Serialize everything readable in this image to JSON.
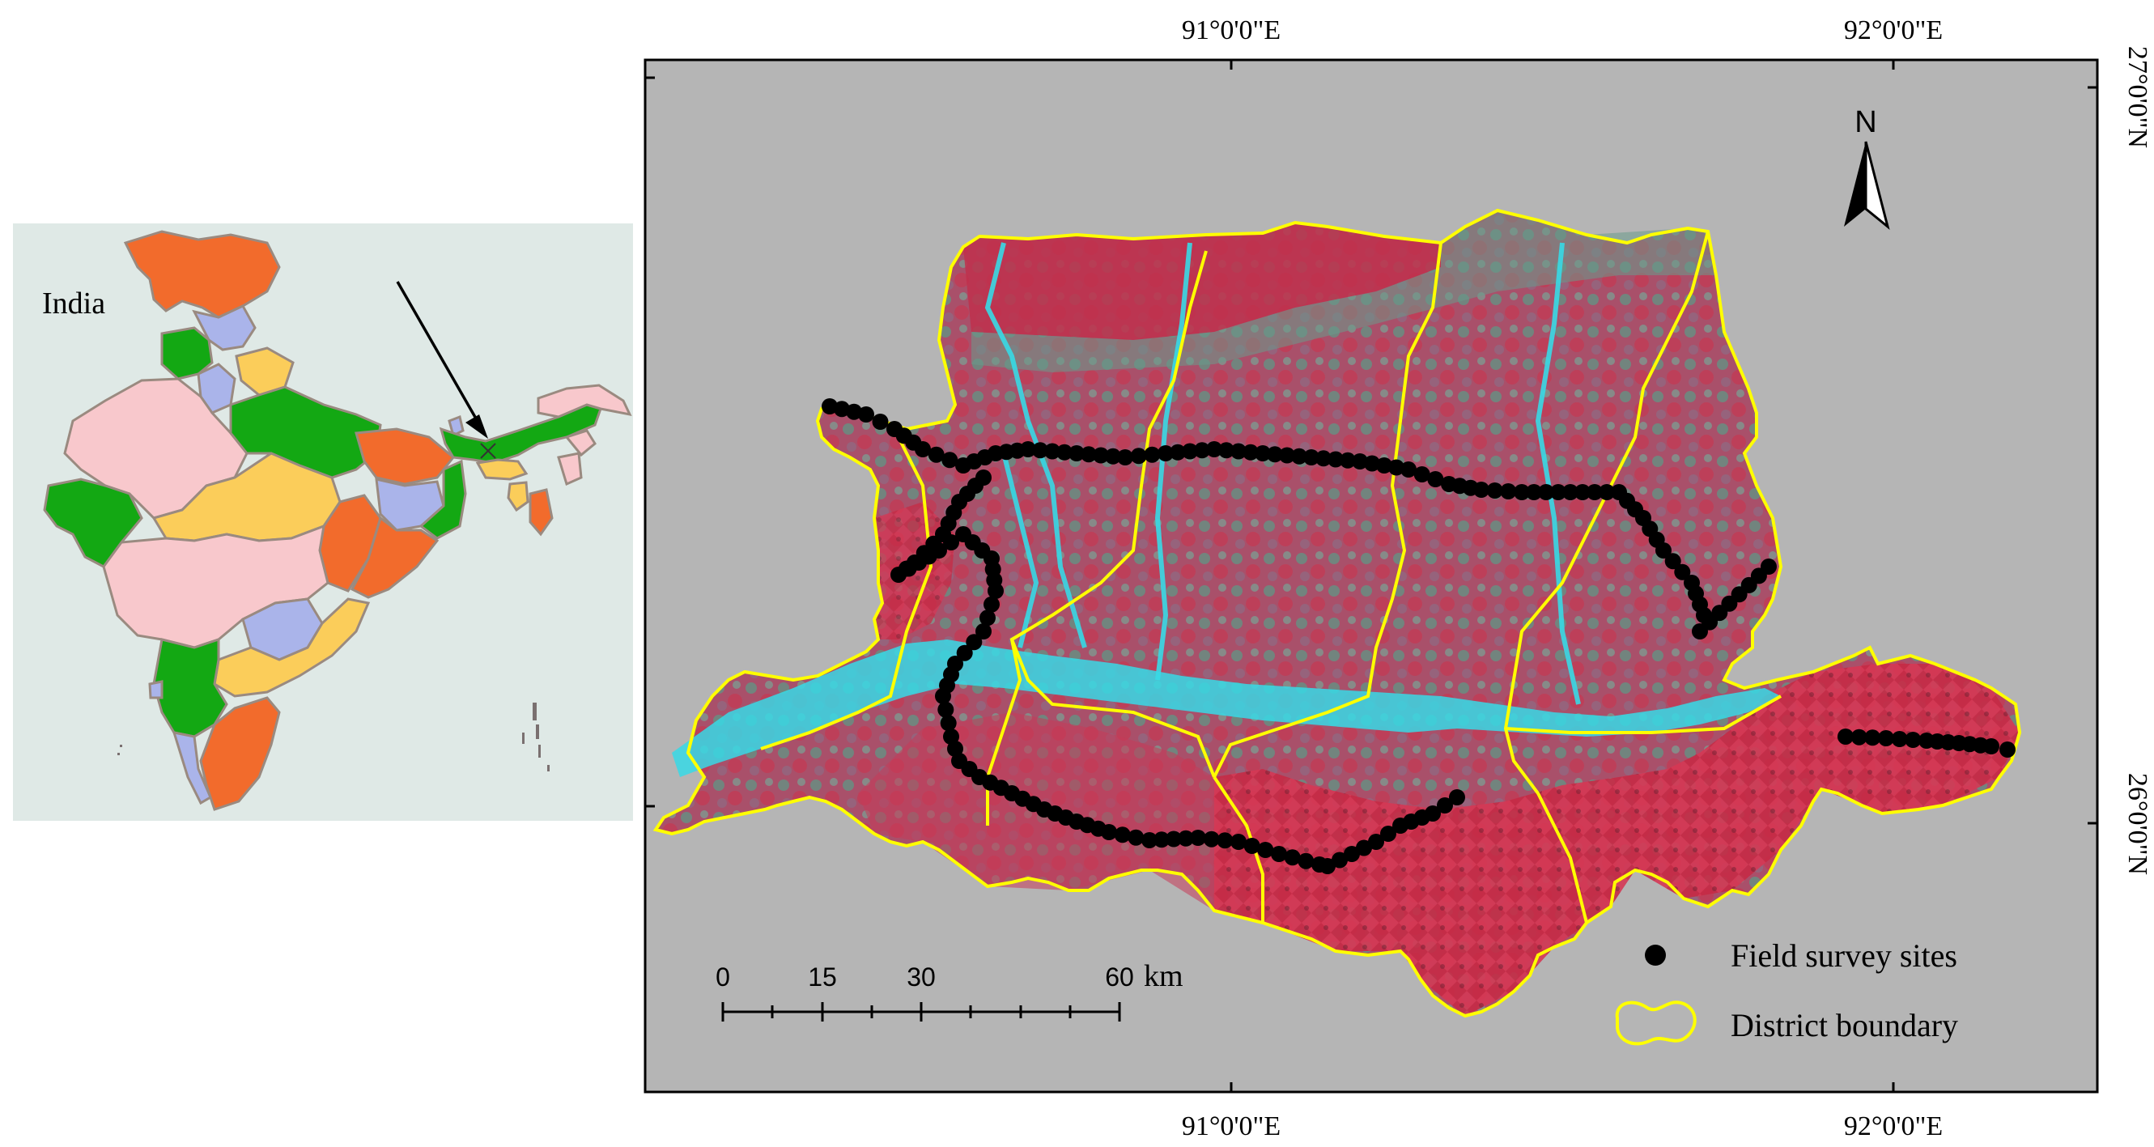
{
  "inset": {
    "label": "India",
    "colors": {
      "background": "#dfe9e6",
      "orange": "#f26b2c",
      "green": "#13a813",
      "pink": "#f8c8cc",
      "lavender": "#aab4ea",
      "yellow": "#fbcd5a",
      "border": "#9a8a80"
    },
    "locator_icon": "arrow-pointer-icon"
  },
  "main_map": {
    "top_axis_labels": [
      "91°0'0\"E",
      "92°0'0\"E"
    ],
    "bottom_axis_labels": [
      "91°0'0\"E",
      "92°0'0\"E"
    ],
    "right_axis_labels": [
      "27°0'0\"N",
      "26°0'0\"N"
    ],
    "north_arrow": {
      "label": "N",
      "icon": "north-arrow-icon"
    },
    "scale_bar": {
      "ticks": [
        "0",
        "15",
        "30",
        "60"
      ],
      "unit": "km"
    },
    "legend": {
      "items": [
        {
          "label": "Field survey sites",
          "icon": "black-dot-icon",
          "color": "#000000"
        },
        {
          "label": "District boundary",
          "icon": "yellow-outline-icon",
          "color": "#ffff00"
        }
      ]
    },
    "colors": {
      "frame_background": "#b5b5b5",
      "imagery_red": "#b83a55",
      "imagery_teal": "#4e9a8a",
      "river": "#37d9e6",
      "boundary": "#ffff00",
      "survey_dot": "#000000"
    }
  }
}
